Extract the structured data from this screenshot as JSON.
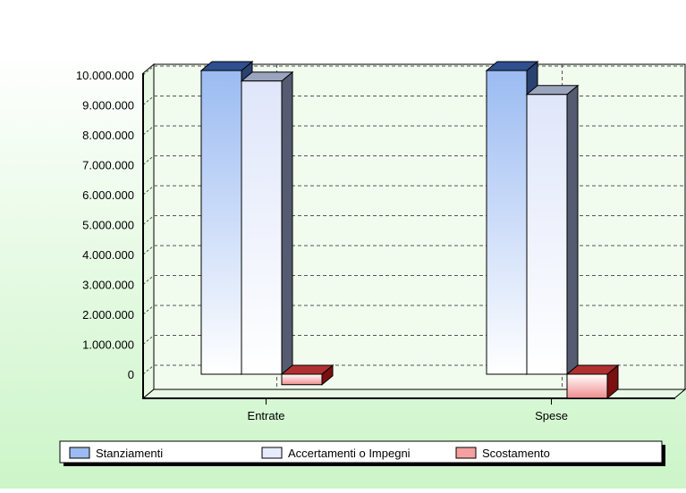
{
  "chart_data": {
    "type": "bar",
    "title": "",
    "xlabel": "",
    "ylabel": "",
    "categories": [
      "Entrate",
      "Spese"
    ],
    "series": [
      {
        "name": "Stanziamenti",
        "values": [
          10150000,
          10150000
        ]
      },
      {
        "name": "Accertamenti o Impegni",
        "values": [
          9800000,
          9350000
        ]
      },
      {
        "name": "Scostamento",
        "values": [
          -350000,
          -800000
        ]
      }
    ],
    "ylim": [
      -700000,
      10250000
    ],
    "y_ticks": [
      "0",
      "1.000.000",
      "2.000.000",
      "3.000.000",
      "4.000.000",
      "5.000.000",
      "6.000.000",
      "7.000.000",
      "8.000.000",
      "9.000.000",
      "10.000.000"
    ],
    "grid": true,
    "three_d": true,
    "legend_position": "bottom",
    "colors": {
      "Stanziamenti": "#9bbbf2",
      "Accertamenti o Impegni": "#dfe6fa",
      "Scostamento": "#f08c8c",
      "plot_background": "#f2fcee",
      "page_background_top": "#ffffff",
      "page_background_bottom": "#ccf5c8"
    }
  }
}
